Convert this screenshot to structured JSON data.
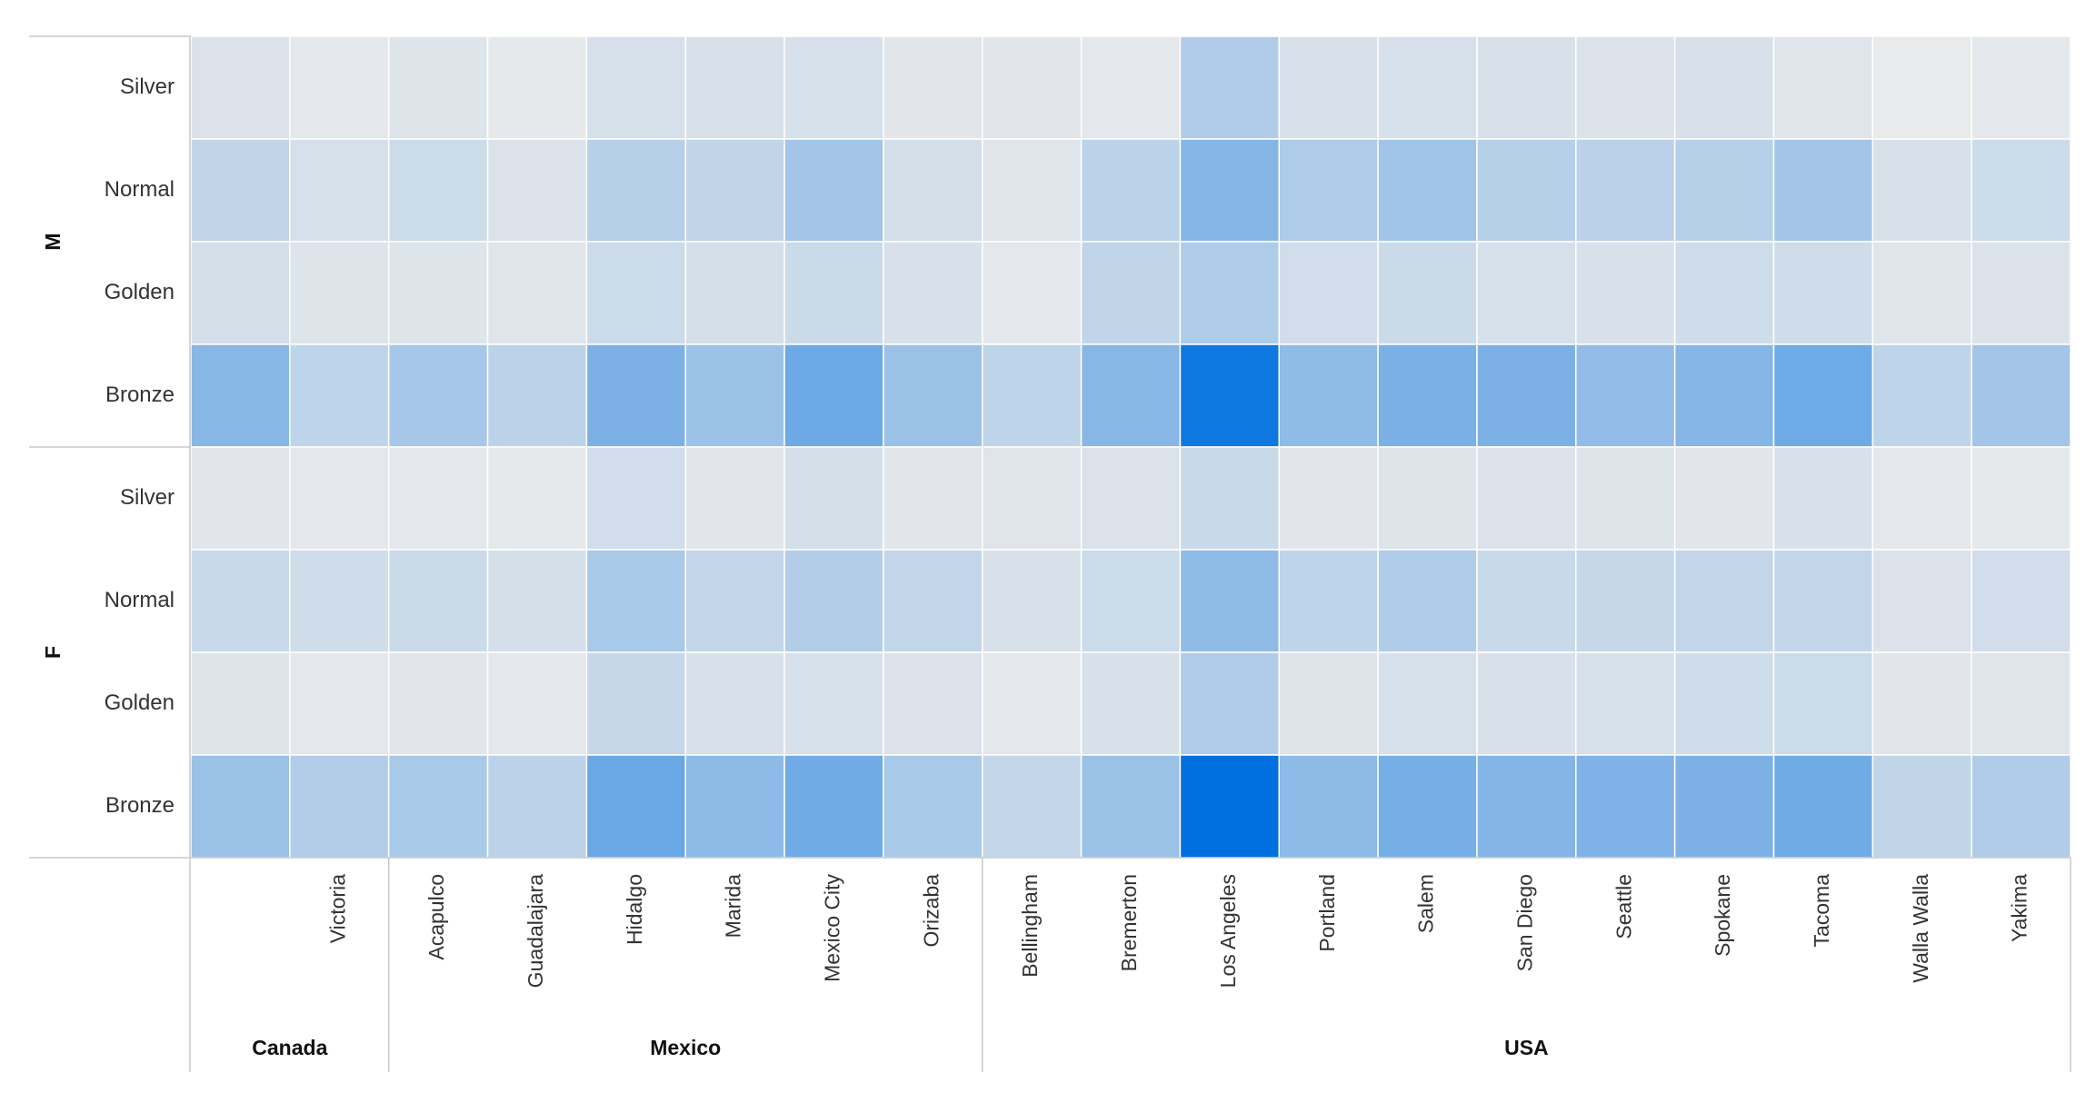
{
  "chart_data": {
    "type": "heatmap",
    "title": "",
    "xlabel": "",
    "ylabel": "",
    "colors": {
      "low": "#ebebeb",
      "high": "#0070e0",
      "grid": "#ffffff",
      "axis_line": "#c8c8c8",
      "label": "#333333",
      "group_label": "#111111"
    },
    "col_groups": [
      {
        "name": "Canada",
        "columns": [
          "",
          "Victoria"
        ]
      },
      {
        "name": "Mexico",
        "columns": [
          "Acapulco",
          "Guadalajara",
          "Hidalgo",
          "Marida",
          "Mexico City",
          "Orizaba"
        ]
      },
      {
        "name": "USA",
        "columns": [
          "Bellingham",
          "Bremerton",
          "Los Angeles",
          "Portland",
          "Salem",
          "San Diego",
          "Seattle",
          "Spokane",
          "Tacoma",
          "Walla Walla",
          "Yakima"
        ]
      }
    ],
    "row_groups": [
      {
        "name": "M",
        "rows": [
          "Silver",
          "Normal",
          "Golden",
          "Bronze"
        ]
      },
      {
        "name": "F",
        "rows": [
          "Silver",
          "Normal",
          "Golden",
          "Bronze"
        ]
      }
    ],
    "value_scale": [
      0,
      100
    ],
    "values": [
      [
        7,
        3,
        6,
        2,
        9,
        8,
        9,
        4,
        4,
        3,
        25,
        8,
        9,
        8,
        7,
        8,
        5,
        1,
        3
      ],
      [
        18,
        9,
        13,
        7,
        22,
        18,
        31,
        10,
        5,
        20,
        43,
        26,
        32,
        22,
        21,
        22,
        31,
        8,
        13
      ],
      [
        10,
        6,
        6,
        5,
        13,
        10,
        14,
        8,
        3,
        18,
        26,
        11,
        14,
        9,
        8,
        12,
        12,
        5,
        7
      ],
      [
        42,
        19,
        29,
        20,
        47,
        33,
        54,
        34,
        19,
        42,
        93,
        39,
        48,
        47,
        38,
        43,
        53,
        19,
        31
      ],
      [
        4,
        3,
        3,
        2,
        11,
        4,
        10,
        4,
        5,
        7,
        15,
        4,
        6,
        7,
        6,
        4,
        8,
        3,
        2
      ],
      [
        15,
        12,
        14,
        10,
        28,
        17,
        24,
        17,
        8,
        13,
        39,
        19,
        26,
        15,
        16,
        17,
        17,
        7,
        11
      ],
      [
        6,
        3,
        4,
        3,
        16,
        8,
        9,
        7,
        3,
        8,
        25,
        6,
        9,
        8,
        9,
        12,
        13,
        4,
        5
      ],
      [
        34,
        24,
        28,
        20,
        55,
        40,
        52,
        28,
        17,
        34,
        100,
        40,
        50,
        44,
        46,
        47,
        52,
        18,
        25
      ]
    ]
  }
}
